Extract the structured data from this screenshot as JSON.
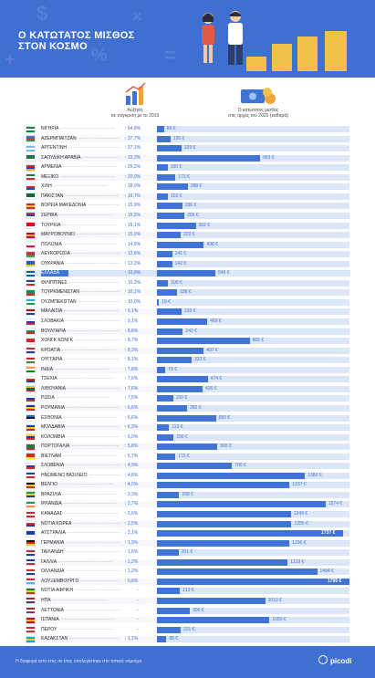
{
  "header": {
    "title_line1": "Ο ΚΑΤΩΤΑΤΟΣ ΜΙΣΘΟΣ",
    "title_line2": "ΣΤΟΝ ΚΟΣΜΟ"
  },
  "columns": {
    "growth_caption_line1": "Αύξηση",
    "growth_caption_line2": "σε σύγκριση με το 2019",
    "wage_caption_line1": "Ο κατώτατος μισθός",
    "wage_caption_line2": "στις αρχές του 2020 (καθαρά)"
  },
  "colors": {
    "header_bg": "#3f6fd1",
    "bar": "#3f73d6",
    "bar_track": "#dbe6f7",
    "growth_text": "#3b6cd4",
    "highlight": "#3f73d6"
  },
  "footer": {
    "note": "Η διαφορά από έτος σε έτος υπολογίστηκε στο τοπικό νόμισμα",
    "brand": "picodi"
  },
  "chart_data": {
    "type": "bar",
    "orientation": "horizontal",
    "unit": "€",
    "xlim": [
      0,
      1796
    ],
    "highlight_country": "ΕΛΛΑΔΑ",
    "rows": [
      {
        "country": "ΝΙΓΗΡΙΑ",
        "growth": "↑ 64,8%",
        "wage": 66,
        "label": "66 €"
      },
      {
        "country": "ΑΖΕΡΜΠΑΪΤΖΑΝ",
        "growth": "↑ 37,7%",
        "wage": 126,
        "label": "126 €"
      },
      {
        "country": "ΑΡΓΕΝΤΙΝΗ",
        "growth": "↑ 37,1%",
        "wage": 229,
        "label": "229 €"
      },
      {
        "country": "ΣΑΟΥΔΙΚΗ ΑΡΑΒΙΑ",
        "growth": "↑ 33,3%",
        "wage": 963,
        "label": "963 €"
      },
      {
        "country": "ΑΡΜΕΝΙΑ",
        "growth": "↑ 25,2%",
        "wage": 100,
        "label": "100 €"
      },
      {
        "country": "ΜΕΞΙΚΟ",
        "growth": "↑ 20,0%",
        "wage": 173,
        "label": "173 €"
      },
      {
        "country": "ΧΙΛΗ",
        "growth": "↑ 18,0%",
        "wage": 288,
        "label": "288 €"
      },
      {
        "country": "ΠΑΚΙΣΤΑΝ",
        "growth": "↑ 16,7%",
        "wage": 102,
        "label": "102 €"
      },
      {
        "country": "ΒΟΡΕΙΑ ΜΑΚΕΔΟΝΙΑ",
        "growth": "↑ 15,9%",
        "wage": 236,
        "label": "236 €"
      },
      {
        "country": "ΣΕΡΒΙΑ",
        "growth": "↑ 15,5%",
        "wage": 256,
        "label": "256 €"
      },
      {
        "country": "ΤΟΥΡΚΙΑ",
        "growth": "↑ 15,1%",
        "wage": 362,
        "label": "362 €"
      },
      {
        "country": "ΜΑΥΡΟΒΟΥΝΙΟ",
        "growth": "↑ 15,0%",
        "wage": 222,
        "label": "222 €"
      },
      {
        "country": "ΠΟΛΩΝΙΑ",
        "growth": "↑ 14,9%",
        "wage": 438,
        "label": "438 €"
      },
      {
        "country": "ΛΕΥΚΟΡΩΣΙΑ",
        "growth": "↑ 13,6%",
        "wage": 141,
        "label": "141 €"
      },
      {
        "country": "ΟΥΚΡΑΝΙΑ",
        "growth": "↑ 13,2%",
        "wage": 142,
        "label": "142 €"
      },
      {
        "country": "ΕΛΛΑΔΑ",
        "growth": "↑ 10,9%",
        "wage": 546,
        "label": "546 €"
      },
      {
        "country": "ΦΙΛΙΠΠΙΝΕΣ",
        "growth": "↑ 10,2%",
        "wage": 105,
        "label": "105 €"
      },
      {
        "country": "ΤΟΥΡΚΜΕΝΙΣΤΑΝ",
        "growth": "↑ 10,1%",
        "wage": 188,
        "label": "188 €"
      },
      {
        "country": "ΟΥΖΜΠΕΚΙΣΤΑΝ",
        "growth": "↑ 10,0%",
        "wage": 19,
        "label": "19 €"
      },
      {
        "country": "ΜΑΛΑΙΣΙΑ",
        "growth": "↑ 9,1%",
        "wage": 230,
        "label": "230 €"
      },
      {
        "country": "ΣΛΟΒΑΚΙΑ",
        "growth": "↑ 9,1%",
        "wage": 469,
        "label": "469 €"
      },
      {
        "country": "ΒΟΥΛΓΑΡΙΑ",
        "growth": "↑ 8,8%",
        "wage": 242,
        "label": "242 €"
      },
      {
        "country": "ΧΟΝΓΚ ΚΟΝΓΚ",
        "growth": "↑ 8,7%",
        "wage": 865,
        "label": "865 €"
      },
      {
        "country": "ΚΡΟΑΤΙΑ",
        "growth": "↑ 8,3%",
        "wage": 437,
        "label": "437 €"
      },
      {
        "country": "ΟΥΓΓΑΡΙΑ",
        "growth": "↑ 8,1%",
        "wage": 323,
        "label": "323 €"
      },
      {
        "country": "ΙΝΔΙΑ",
        "growth": "↑ 7,8%",
        "wage": 79,
        "label": "79 €"
      },
      {
        "country": "ΤΣΕΧΙΑ",
        "growth": "↑ 7,6%",
        "wage": 474,
        "label": "474 €"
      },
      {
        "country": "ΛΙΘΟΥΑΝΙΑ",
        "growth": "↑ 7,6%",
        "wage": 426,
        "label": "426 €"
      },
      {
        "country": "ΡΩΣΙΑ",
        "growth": "↑ 7,5%",
        "wage": 150,
        "label": "150 €"
      },
      {
        "country": "ΡΟΥΜΑΝΙΑ",
        "growth": "↑ 6,6%",
        "wage": 282,
        "label": "282 €"
      },
      {
        "country": "ΕΣΘΟΝΙΑ",
        "growth": "↑ 6,6%",
        "wage": 550,
        "label": "550 €"
      },
      {
        "country": "ΜΟΛΔΑΒΙΑ",
        "growth": "↑ 6,3%",
        "wage": 113,
        "label": "113 €"
      },
      {
        "country": "ΚΟΛΟΜΒΙΑ",
        "growth": "↑ 6,0%",
        "wage": 156,
        "label": "156 €"
      },
      {
        "country": "ΠΟΡΤΟΓΑΛΙΑ",
        "growth": "↑ 5,8%",
        "wage": 565,
        "label": "565 €"
      },
      {
        "country": "ΒΙΕΤΝΑΜ",
        "growth": "↑ 5,7%",
        "wage": 172,
        "label": "172 €"
      },
      {
        "country": "ΣΛΟΒΕΝΙΑ",
        "growth": "↑ 4,9%",
        "wage": 700,
        "label": "700 €"
      },
      {
        "country": "ΗΝΩΜΕΝΟ ΒΑΣΙΛΕΙΟ",
        "growth": "↑ 4,8%",
        "wage": 1382,
        "label": "1382 €"
      },
      {
        "country": "ΒΕΛΓΙΟ",
        "growth": "↑ 4,0%",
        "wage": 1237,
        "label": "1237 €"
      },
      {
        "country": "ΒΡΑΖΙΛΙΑ",
        "growth": "↑ 3,3%",
        "wage": 208,
        "label": "208 €"
      },
      {
        "country": "ΙΡΛΑΝΔΙΑ",
        "growth": "↑ 2,7%",
        "wage": 1574,
        "label": "1574 €"
      },
      {
        "country": "ΚΑΝΑΔΑΣ",
        "growth": "↑ 2,6%",
        "wage": 1249,
        "label": "1249 €"
      },
      {
        "country": "ΝΟΤΙΑ ΚΟΡΕΑ",
        "growth": "↑ 2,5%",
        "wage": 1255,
        "label": "1255 €"
      },
      {
        "country": "ΑΥΣΤΡΑΛΙΑ",
        "growth": "↑ 2,1%",
        "wage": 1737,
        "label": "1737 €"
      },
      {
        "country": "ΓΕΡΜΑΝΙΑ",
        "growth": "↑ 1,9%",
        "wage": 1236,
        "label": "1236 €"
      },
      {
        "country": "ΤΑΪΛΑΝΔΗ",
        "growth": "↑ 1,6%",
        "wage": 201,
        "label": "201 €"
      },
      {
        "country": "ΓΑΛΛΙΑ",
        "growth": "↑ 1,2%",
        "wage": 1219,
        "label": "1219 €"
      },
      {
        "country": "ΟΛΛΑΝΔΙΑ",
        "growth": "↑ 1,2%",
        "wage": 1494,
        "label": "1494 €"
      },
      {
        "country": "ΛΟΥΞΕΜΒΟΥΡΓΟ",
        "growth": "↑ 0,8%",
        "wage": 1796,
        "label": "1796 €"
      },
      {
        "country": "ΝΟΤΙΑ ΑΦΡΙΚΗ",
        "growth": "−",
        "wage": 213,
        "label": "213 €"
      },
      {
        "country": "ΗΠΑ",
        "growth": "−",
        "wage": 1010,
        "label": "1010 €"
      },
      {
        "country": "ΛΕΤΤΟΝΙΑ",
        "growth": "−",
        "wage": 306,
        "label": "306 €"
      },
      {
        "country": "ΙΣΠΑΝΙΑ",
        "growth": "−",
        "wage": 1050,
        "label": "1050 €"
      },
      {
        "country": "ΠΕΡΟΥ",
        "growth": "−",
        "wage": 221,
        "label": "221 €"
      },
      {
        "country": "ΚΑΖΑΚΣΤΑΝ",
        "growth": "↓ 1,1%",
        "wage": 88,
        "label": "88 €"
      }
    ]
  }
}
